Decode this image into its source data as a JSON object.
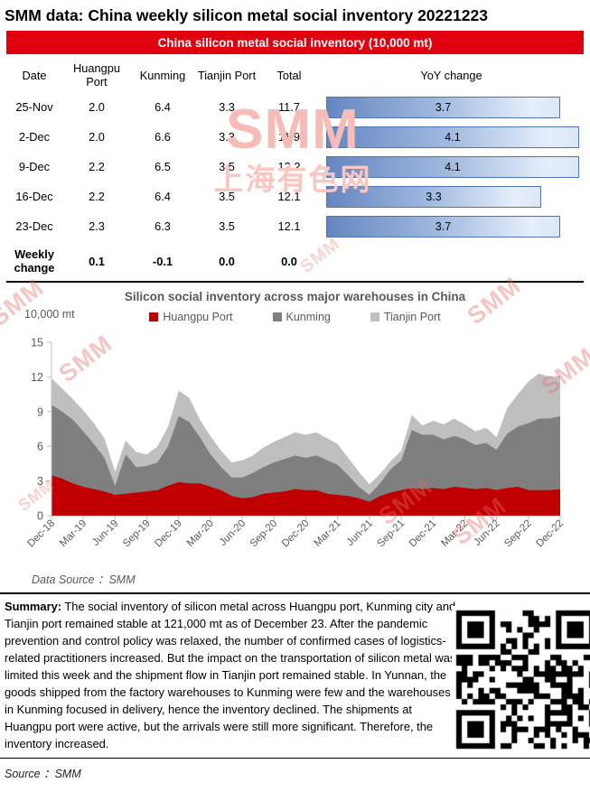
{
  "title": "SMM data: China weekly silicon metal social inventory 20221223",
  "table": {
    "banner": "China silicon metal social inventory (10,000 mt)",
    "columns": [
      "Date",
      "Huangpu Port",
      "Kunming",
      "Tianjin Port",
      "Total",
      "YoY change"
    ],
    "rows": [
      {
        "date": "25-Nov",
        "huangpu": "2.0",
        "kunming": "6.4",
        "tianjin": "3.3",
        "total": "11.7",
        "yoy": 3.7
      },
      {
        "date": "2-Dec",
        "huangpu": "2.0",
        "kunming": "6.6",
        "tianjin": "3.3",
        "total": "11.9",
        "yoy": 4.1
      },
      {
        "date": "9-Dec",
        "huangpu": "2.2",
        "kunming": "6.5",
        "tianjin": "3.5",
        "total": "12.2",
        "yoy": 4.1
      },
      {
        "date": "16-Dec",
        "huangpu": "2.2",
        "kunming": "6.4",
        "tianjin": "3.5",
        "total": "12.1",
        "yoy": 3.3
      },
      {
        "date": "23-Dec",
        "huangpu": "2.3",
        "kunming": "6.3",
        "tianjin": "3.5",
        "total": "12.1",
        "yoy": 3.7
      }
    ],
    "weekly_change": {
      "label": "Weekly change",
      "huangpu": "0.1",
      "kunming": "-0.1",
      "tianjin": "0.0",
      "total": "0.0"
    }
  },
  "chart_data": {
    "type": "area",
    "stacked": true,
    "title": "Silicon social inventory across major warehouses in China",
    "unit_label": "10,000 mt",
    "ylim": [
      0,
      15
    ],
    "yticks": [
      0,
      3,
      6,
      9,
      12,
      15
    ],
    "legend_position": "top",
    "grid": false,
    "x": [
      "Dec-18",
      "Jan-19",
      "Feb-19",
      "Mar-19",
      "Apr-19",
      "May-19",
      "Jun-19",
      "Jul-19",
      "Aug-19",
      "Sep-19",
      "Oct-19",
      "Nov-19",
      "Dec-19",
      "Jan-20",
      "Feb-20",
      "Mar-20",
      "Apr-20",
      "May-20",
      "Jun-20",
      "Jul-20",
      "Aug-20",
      "Sep-20",
      "Oct-20",
      "Nov-20",
      "Dec-20",
      "Jan-21",
      "Feb-21",
      "Mar-21",
      "Apr-21",
      "May-21",
      "Jun-21",
      "Jul-21",
      "Aug-21",
      "Sep-21",
      "Oct-21",
      "Nov-21",
      "Dec-21",
      "Jan-22",
      "Feb-22",
      "Mar-22",
      "Apr-22",
      "May-22",
      "Jun-22",
      "Jul-22",
      "Aug-22",
      "Sep-22",
      "Oct-22",
      "Nov-22",
      "Dec-22"
    ],
    "xtick_every": 3,
    "series": [
      {
        "name": "Huangpu Port",
        "color": "#c00000",
        "values": [
          3.5,
          3.2,
          2.8,
          2.5,
          2.3,
          2.1,
          1.8,
          1.9,
          2.0,
          2.1,
          2.2,
          2.6,
          2.9,
          2.8,
          2.8,
          2.5,
          2.2,
          1.7,
          1.5,
          1.6,
          1.9,
          2.0,
          2.1,
          2.3,
          2.2,
          2.2,
          1.9,
          1.8,
          1.7,
          1.5,
          1.2,
          1.7,
          2.0,
          2.2,
          2.4,
          2.3,
          2.4,
          2.3,
          2.5,
          2.4,
          2.3,
          2.4,
          2.2,
          2.4,
          2.5,
          2.2,
          2.2,
          2.2,
          2.3
        ]
      },
      {
        "name": "Kunming",
        "color": "#7f7f7f",
        "values": [
          6.1,
          5.8,
          5.5,
          4.8,
          3.9,
          2.9,
          0.8,
          3.4,
          2.2,
          2.2,
          2.4,
          3.4,
          5.7,
          5.3,
          4.0,
          2.8,
          2.0,
          1.6,
          1.8,
          2.1,
          2.3,
          2.6,
          2.8,
          2.9,
          2.8,
          3.0,
          2.9,
          2.6,
          1.8,
          1.0,
          0.6,
          1.1,
          2.0,
          2.6,
          5.0,
          4.7,
          4.6,
          4.3,
          4.4,
          4.2,
          3.8,
          3.9,
          3.5,
          4.7,
          5.2,
          5.8,
          6.2,
          6.2,
          6.3
        ]
      },
      {
        "name": "Tianjin Port",
        "color": "#bfbfbf",
        "values": [
          2.3,
          2.0,
          1.8,
          1.8,
          1.8,
          1.7,
          1.2,
          1.2,
          1.3,
          1.0,
          1.4,
          1.7,
          2.2,
          2.1,
          1.5,
          1.6,
          1.4,
          1.3,
          1.5,
          1.5,
          1.7,
          1.8,
          1.9,
          2.0,
          2.0,
          2.0,
          1.9,
          1.8,
          1.5,
          1.3,
          0.9,
          0.8,
          0.7,
          0.8,
          1.3,
          0.8,
          1.2,
          1.3,
          1.5,
          1.3,
          1.2,
          1.3,
          1.1,
          2.2,
          2.8,
          3.6,
          3.9,
          3.6,
          3.5
        ]
      }
    ],
    "source_note": "Data Source ：SMM"
  },
  "summary": {
    "label": "Summary:",
    "text": "The social inventory of silicon metal across Huangpu port, Kunming city and Tianjin port remained stable at 121,000 mt as of December 23. After the pandemic prevention and control policy was relaxed, the number of confirmed cases of logistics-related practitioners increased. But the impact on the transportation of silicon metal was limited this week and the shipment flow in Tianjin port remained stable. In Yunnan, the goods shipped from the factory warehouses to Kunming were few and the warehouses in Kunming focused in delivery, hence the inventory declined. The shipments at Huangpu port were active, but the arrivals were still more significant. Therefore, the inventory increased."
  },
  "footer": {
    "source": "Source ：SMM"
  },
  "watermark": {
    "logo": "SMM",
    "cn": "上海有色网"
  },
  "colors": {
    "banner_red": "#e1000d",
    "huangpu_red": "#c00000",
    "kunming_gray": "#7f7f7f",
    "tianjin_gray": "#bfbfbf",
    "yoy_bar_border": "#4f74b8",
    "yoy_bar_fill_from": "#6586c1",
    "yoy_bar_fill_to": "#dbe7f6",
    "axis_text": "#595959",
    "watermark_pink": "#f8bcb7"
  }
}
